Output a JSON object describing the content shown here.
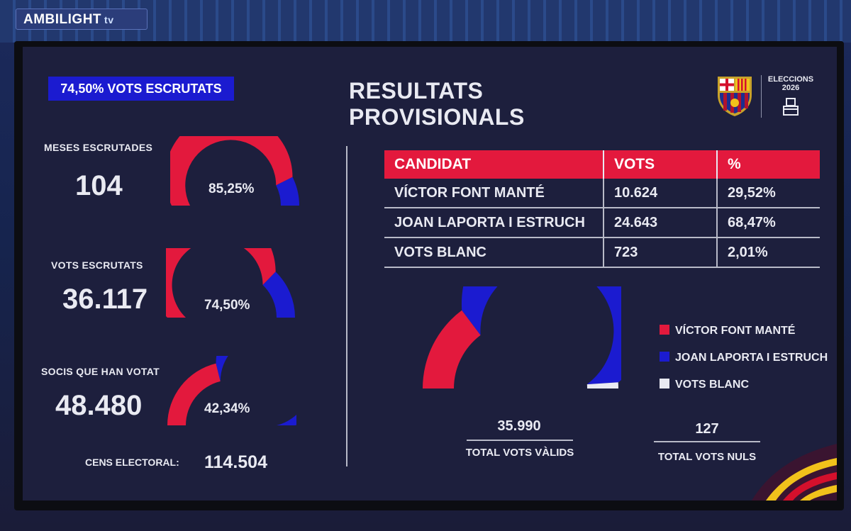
{
  "brand": {
    "name": "AMBILIGHT",
    "suffix": "tv"
  },
  "header": {
    "scrutiny_badge": "74,50%  VOTS ESCRUTATS",
    "title": "RESULTATS PROVISIONALS",
    "election_label_line1": "ELECCIONS",
    "election_label_line2": "2026",
    "crest_icon": "fc-barcelona-crest",
    "ballot_icon": "ballot-box-icon"
  },
  "colors": {
    "red": "#e3193d",
    "blue": "#1b1bd0",
    "white": "#e9eaf2",
    "background": "#1d1f3d"
  },
  "stats": [
    {
      "label": "MESES ESCRUTADES",
      "value": "104",
      "percent_text": "85,25%",
      "fraction": 0.8525
    },
    {
      "label": "VOTS ESCRUTATS",
      "value": "36.117",
      "percent_text": "74,50%",
      "fraction": 0.745
    },
    {
      "label": "SOCIS QUE HAN VOTAT",
      "value": "48.480",
      "percent_text": "42,34%",
      "fraction": 0.4234
    }
  ],
  "census": {
    "label": "CENS ELECTORAL:",
    "value": "114.504"
  },
  "table": {
    "headers": [
      "CANDIDAT",
      "VOTS",
      "%"
    ],
    "rows": [
      {
        "candidate": "VÍCTOR FONT MANTÉ",
        "votes": "10.624",
        "percent": "29,52%"
      },
      {
        "candidate": "JOAN LAPORTA I ESTRUCH",
        "votes": "24.643",
        "percent": "68,47%"
      },
      {
        "candidate": "VOTS BLANC",
        "votes": "723",
        "percent": "2,01%"
      }
    ]
  },
  "chart_data": {
    "type": "pie",
    "style": "semicircle-donut",
    "categories": [
      "VÍCTOR FONT MANTÉ",
      "JOAN LAPORTA I ESTRUCH",
      "VOTS BLANC"
    ],
    "values": [
      29.52,
      68.47,
      2.01
    ],
    "colors": [
      "#e3193d",
      "#1b1bd0",
      "#e9eaf2"
    ],
    "legend_position": "right"
  },
  "totals": [
    {
      "value": "35.990",
      "label": "TOTAL VOTS VÀLIDS"
    },
    {
      "value": "127",
      "label": "TOTAL VOTS NULS"
    }
  ]
}
